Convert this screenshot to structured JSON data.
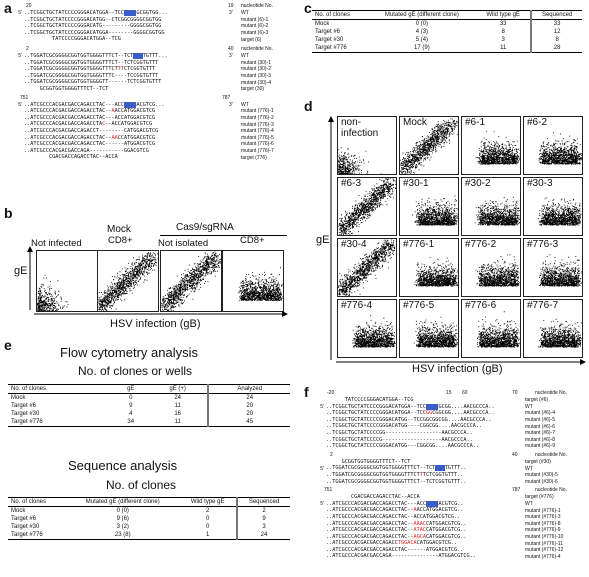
{
  "panel_a": {
    "label": "a",
    "block1": {
      "pos_start": "20",
      "pos_end": "19",
      "header": "nucleotide No.",
      "rows": [
        {
          "prime5": "5'",
          "segs": [
            [
              "n",
              "..TCGGCTGCTATCCCCGGGACATGGA--TCC"
            ],
            [
              "b",
              "GGAG"
            ],
            [
              "n",
              "GCGGTGG..."
            ]
          ],
          "prime3": "3'",
          "label": "WT"
        },
        {
          "prime5": "",
          "segs": [
            [
              "n",
              "..TCGGCTGCTATCCCCGGGACATGG--CTCGGCGGGGCGGTGG"
            ]
          ],
          "prime3": "",
          "label": "mutant (6)-1"
        },
        {
          "prime5": "",
          "segs": [
            [
              "n",
              "..TCGGCTGCTATCCCCGGGACATG---------GGGGCGGTGG"
            ]
          ],
          "prime3": "",
          "label": "mutant (6)-2"
        },
        {
          "prime5": "",
          "segs": [
            [
              "n",
              "..TCGGCTGCTATCCCCGGGACATGGA--------GGGGCGGTGG"
            ]
          ],
          "prime3": "",
          "label": "mutant (6)-3"
        },
        {
          "prime5": "",
          "segs": [
            [
              "n",
              "         TATCCCCGGGACATGGA--TCG"
            ]
          ],
          "prime3": "",
          "label": "target (6)"
        }
      ]
    },
    "block2": {
      "pos_start": "2",
      "pos_end": "40",
      "header": "nucleotide No.",
      "rows": [
        {
          "prime5": "5'",
          "segs": [
            [
              "n",
              "..TGGATCGCGGGGCGGTGGTGGGGTTTCT--TCT"
            ],
            [
              "b",
              "GGG"
            ],
            [
              "n",
              "TGTTT..."
            ]
          ],
          "prime3": "3'",
          "label": "WT"
        },
        {
          "prime5": "",
          "segs": [
            [
              "n",
              "..TGGATCGCGGGGCGGTGGTGGGGTTTCT--TCTCGGTGTTT"
            ]
          ],
          "prime3": "",
          "label": "mutant (30)-1"
        },
        {
          "prime5": "",
          "segs": [
            [
              "n",
              "..TGGATCGCGGGGCGGTGGTGGGGTTTCT"
            ],
            [
              "r",
              "TT"
            ],
            [
              "n",
              "CTCGGTGTTT"
            ]
          ],
          "prime3": "",
          "label": "mutant (30)-2"
        },
        {
          "prime5": "",
          "segs": [
            [
              "n",
              "..TGGATCGCGGGGCGGTGGTGGGGTTTC----TCCGGTGTTT"
            ]
          ],
          "prime3": "",
          "label": "mutant (30)-3"
        },
        {
          "prime5": "",
          "segs": [
            [
              "n",
              "..TGGATCGCGGGGCGGTGGTGGGGTT------TCTCGGTGTTT"
            ]
          ],
          "prime3": "",
          "label": "mutant (30)-4"
        },
        {
          "prime5": "",
          "segs": [
            [
              "n",
              "     GCGGTGGTGGGGTTTCT--TCT"
            ]
          ],
          "prime3": "",
          "label": "target (30)"
        }
      ]
    },
    "block3": {
      "pos_start": "751",
      "pos_end": "787",
      "rows": [
        {
          "prime5": "5'",
          "segs": [
            [
              "n",
              "..ATCGCCCACGACGACCAGACCTAC---ACC"
            ],
            [
              "b",
              "ATGG"
            ],
            [
              "n",
              "ACGTCG..."
            ]
          ],
          "prime3": "3'",
          "label": "WT"
        },
        {
          "prime5": "",
          "segs": [
            [
              "n",
              "..ATCGCCCACGACGACCAGACCTAC--"
            ],
            [
              "r",
              "A"
            ],
            [
              "n",
              "ACCATGGACGTCG"
            ]
          ],
          "prime3": "",
          "label": "mutant (776)-1"
        },
        {
          "prime5": "",
          "segs": [
            [
              "n",
              "..ATCGCCCACGACGACCAGACCTAC---ACCATGGACGTCG"
            ]
          ],
          "prime3": "",
          "label": "mutant (776)-2"
        },
        {
          "prime5": "",
          "segs": [
            [
              "n",
              "..ATCGCCCACGACGACCAGACCTA"
            ],
            [
              "r",
              "C"
            ],
            [
              "n",
              "--ACCATGGACGTCG"
            ]
          ],
          "prime3": "",
          "label": "mutant (776)-3"
        },
        {
          "prime5": "",
          "segs": [
            [
              "n",
              "..ATCGCCCACGACGACCAGACCT--------CATGGACGTCG"
            ]
          ],
          "prime3": "",
          "label": "mutant (776)-4"
        },
        {
          "prime5": "",
          "segs": [
            [
              "n",
              "..ATCGCCCACGACGACCAGACCTAC--"
            ],
            [
              "r",
              "AA"
            ],
            [
              "n",
              "CCATGGACGTCG"
            ]
          ],
          "prime3": "",
          "label": "mutant (776)-5"
        },
        {
          "prime5": "",
          "segs": [
            [
              "n",
              "..ATCGCCCACGACGACCAGACCTAC------ATGGACGTCG"
            ]
          ],
          "prime3": "",
          "label": "mutant (776)-6"
        },
        {
          "prime5": "",
          "segs": [
            [
              "n",
              "..ATCGCCCACGACGACCAGA-----------GGACGTCG"
            ]
          ],
          "prime3": "",
          "label": "mutant (776)-7"
        },
        {
          "prime5": "",
          "segs": [
            [
              "n",
              "        CGACGACCAGACCTAC--ACCA"
            ]
          ],
          "prime3": "",
          "label": "target (776)"
        }
      ]
    }
  },
  "panel_b": {
    "label": "b",
    "group_mock": "Mock",
    "group_cas9": "Cas9/sgRNA",
    "plots": [
      {
        "top": "",
        "label": "Not infected"
      },
      {
        "top": "Mock",
        "label": "CD8+"
      },
      {
        "top": "",
        "label": "Not isolated"
      },
      {
        "top": "",
        "label": "CD8+"
      }
    ],
    "ylabel": "gE",
    "xlabel": "HSV infection (gB)"
  },
  "panel_c": {
    "label": "c",
    "headers": [
      "No. of clones",
      "Mutated gE (different clone)",
      "Wild type gE",
      "Sequenced"
    ],
    "rows": [
      [
        "Mock",
        "0 (0)",
        "33",
        "33"
      ],
      [
        "Target #6",
        "4 (3)",
        "8",
        "12"
      ],
      [
        "Target #30",
        "5 (4)",
        "3",
        "8"
      ],
      [
        "Target #776",
        "17 (9)",
        "11",
        "28"
      ]
    ]
  },
  "panel_d": {
    "label": "d",
    "ylabel": "gE",
    "xlabel": "HSV infection (gB)",
    "plots": [
      "non-infection",
      "Mock",
      "#6-1",
      "#6-2",
      "#6-3",
      "#30-1",
      "#30-2",
      "#30-3",
      "#30-4",
      "#776-1",
      "#776-2",
      "#776-3",
      "#776-4",
      "#776-5",
      "#776-6",
      "#776-7"
    ]
  },
  "panel_e": {
    "label": "e",
    "title1": "Flow cytometry analysis",
    "subtitle1": "No. of clones or wells",
    "table1": {
      "headers": [
        "No. of clones",
        "gE",
        "gE (+)",
        "Analyzed"
      ],
      "rows": [
        [
          "Mock",
          "0",
          "24",
          "24"
        ],
        [
          "Target #6",
          "9",
          "11",
          "20"
        ],
        [
          "Target #30",
          "4",
          "16",
          "20"
        ],
        [
          "Target #776",
          "34",
          "11",
          "45"
        ]
      ]
    },
    "title2": "Sequence analysis",
    "subtitle2": "No. of clones",
    "table2": {
      "headers": [
        "No. of clones",
        "Mutated gE (different clone)",
        "Wild type gE",
        "Sequenced"
      ],
      "rows": [
        [
          "Mock",
          "0 (0)",
          "2",
          "2"
        ],
        [
          "Target #6",
          "9 (6)",
          "0",
          "9"
        ],
        [
          "Target #30",
          "3 (2)",
          "0",
          "3"
        ],
        [
          "Target #776",
          "23 (8)",
          "1",
          "24"
        ]
      ]
    }
  },
  "panel_f": {
    "label": "f",
    "block1": {
      "positions": [
        "-20",
        "15",
        "60",
        "70"
      ],
      "header": "nucleotide No.",
      "rows": [
        {
          "prime5": "",
          "segs": [
            [
              "n",
              "      TATCCCCGGGACATGGA--TCG"
            ]
          ],
          "label": "target (#6)"
        },
        {
          "prime5": "5'",
          "segs": [
            [
              "n",
              "..TCGGCTGCTATCCCCGGGACATGGA--TCC"
            ],
            [
              "b",
              "GGAG"
            ],
            [
              "n",
              "GCGG....AACGCCCA.."
            ]
          ],
          "label": "WT"
        },
        {
          "prime5": "",
          "segs": [
            [
              "n",
              "..TCGGCTGCTATCCCCGGGACATGGA--TCC"
            ],
            [
              "r",
              "GG"
            ],
            [
              "n",
              "CGGCGG....AACGCCCA.."
            ]
          ],
          "label": "mutant (#6)-4"
        },
        {
          "prime5": "",
          "segs": [
            [
              "n",
              "..TCGGCTGCTATCCCCGGGACATGG--TCCGGCGGCGG....AACGCCCA.."
            ]
          ],
          "label": "mutant (#6)-5"
        },
        {
          "prime5": "",
          "segs": [
            [
              "n",
              "..TCGGCTGCTATCCCCGGGACATGG----CGGCGG....AACGCCCA.."
            ]
          ],
          "label": "mutant (#6)-6"
        },
        {
          "prime5": "",
          "segs": [
            [
              "n",
              "..TCGGCTGCTATCCCCGG------------------AACGCCCA.."
            ]
          ],
          "label": "mutant (#6)-7"
        },
        {
          "prime5": "",
          "segs": [
            [
              "n",
              "..TCGGCTGCTATCCCCG-------------------AACGCCCA.."
            ]
          ],
          "label": "mutant (#6)-8"
        },
        {
          "prime5": "",
          "segs": [
            [
              "n",
              "..TCGGCTGCTATCCCCGGGACATGG---CGGCGG....AACGCCCA.."
            ]
          ],
          "label": "mutant (#6)-9"
        }
      ]
    },
    "block2": {
      "positions": [
        "2",
        "40"
      ],
      "header": "nucleotide No.",
      "rows": [
        {
          "prime5": "",
          "segs": [
            [
              "n",
              "     GCGGTGGTGGGGTTTCT--TCT"
            ]
          ],
          "label": "target (#30)"
        },
        {
          "prime5": "5'",
          "segs": [
            [
              "n",
              "..TGGATCGCGGGGCGGTGGTGGGGTTTCT--TCT"
            ],
            [
              "b",
              "GGG"
            ],
            [
              "n",
              "TGTTT.."
            ]
          ],
          "label": "WT"
        },
        {
          "prime5": "",
          "segs": [
            [
              "n",
              "..TGGATCGCGGGGCGGTGGTGGGGTTTCT"
            ],
            [
              "r",
              "T"
            ],
            [
              "n",
              "TCTCGGTGTTT.."
            ]
          ],
          "label": "mutant (#30)-5"
        },
        {
          "prime5": "",
          "segs": [
            [
              "n",
              "..TGGATCGCGGGGCGGTGGTGGGGTTTCT--TCTCGGTGTTT.."
            ]
          ],
          "label": "mutant (#30)-6"
        }
      ]
    },
    "block3": {
      "positions": [
        "751",
        "787"
      ],
      "header": "nucleotide No.",
      "rows": [
        {
          "prime5": "",
          "segs": [
            [
              "n",
              "        CGACGACCAGACCTAC--ACCA"
            ]
          ],
          "label": "target (#776)"
        },
        {
          "prime5": "5'",
          "segs": [
            [
              "n",
              "..ATCGCCCACGACGACCAGACCTAC---ACC"
            ],
            [
              "b",
              "ATGG"
            ],
            [
              "n",
              "ACGTCG.."
            ]
          ],
          "label": "WT"
        },
        {
          "prime5": "",
          "segs": [
            [
              "n",
              "..ATCGCCCACGACGACCAGACCTAC--"
            ],
            [
              "r",
              "A"
            ],
            [
              "n",
              "ACCATGGACGTCG.."
            ]
          ],
          "label": "mutant (#776)-1"
        },
        {
          "prime5": "",
          "segs": [
            [
              "n",
              "..ATCGCCCACGACGACCAGACCTAC--ACCATGGACGTCG.."
            ]
          ],
          "label": "mutant (#776)-3"
        },
        {
          "prime5": "",
          "segs": [
            [
              "n",
              "..ATCGCCCACGACGACCAGACCTAC--"
            ],
            [
              "r",
              "AAAC"
            ],
            [
              "n",
              "CATGGACGTCG.."
            ]
          ],
          "label": "mutant (#776)-8"
        },
        {
          "prime5": "",
          "segs": [
            [
              "n",
              "..ATCGCCCACGACGACCAGACCTAC--"
            ],
            [
              "r",
              "ATAC"
            ],
            [
              "n",
              "CATGGACGTCG.."
            ]
          ],
          "label": "mutant (#776)-9"
        },
        {
          "prime5": "",
          "segs": [
            [
              "n",
              "..ATCGCCCACGACGACCAGACCTAC--"
            ],
            [
              "r",
              "AGCA"
            ],
            [
              "n",
              "CATGGACGTCG.."
            ]
          ],
          "label": "mutant (#776)-10"
        },
        {
          "prime5": "",
          "segs": [
            [
              "n",
              "..ATCGCCCACGACGACCAGACC"
            ],
            [
              "r",
              "TGGACA"
            ],
            [
              "n",
              "CATGGACGTCG.."
            ]
          ],
          "label": "mutant (#776)-11"
        },
        {
          "prime5": "",
          "segs": [
            [
              "n",
              "..ATCGCCCACGACGACCAGACCTAC------ATGGACGTCG.."
            ]
          ],
          "label": "mutant (#776)-12"
        },
        {
          "prime5": "",
          "segs": [
            [
              "n",
              "..ATCGCCCACGACGACCAGA---------------ATGGACGTCG.."
            ]
          ],
          "label": "mutant (#776)-4"
        }
      ]
    }
  }
}
